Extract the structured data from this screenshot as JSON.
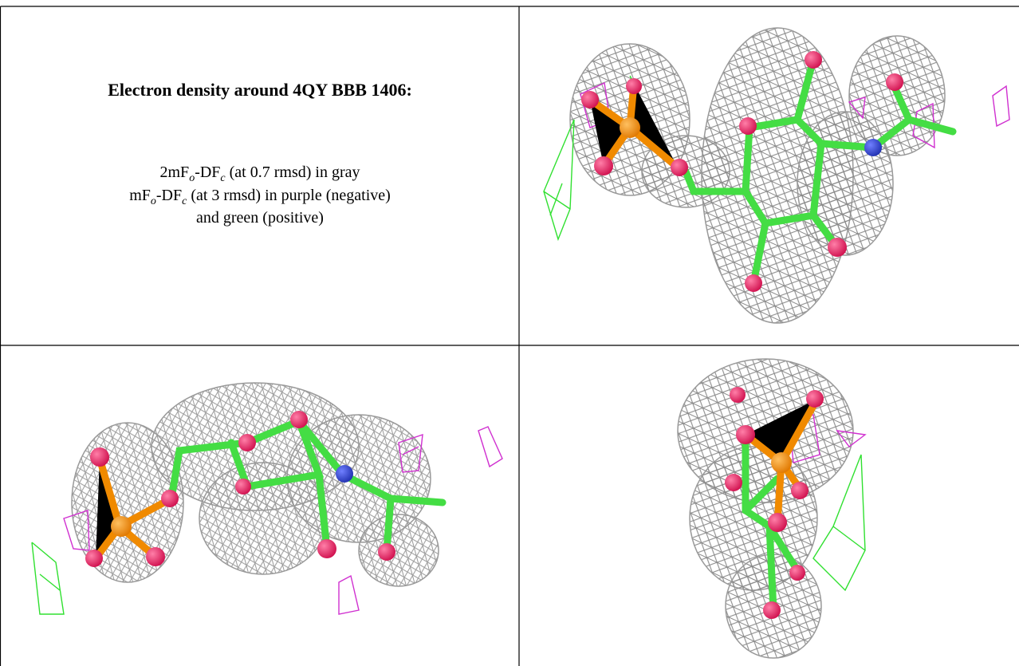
{
  "title": "Electron density around 4QY BBB 1406:",
  "description": [
    [
      "2mF",
      "o",
      "-DF",
      "c",
      " (at 0.7 rmsd) in gray"
    ],
    [
      "mF",
      "o",
      "-DF",
      "c",
      " (at 3 rmsd) in purple (negative)"
    ],
    [
      "and green (positive)"
    ]
  ]
}
